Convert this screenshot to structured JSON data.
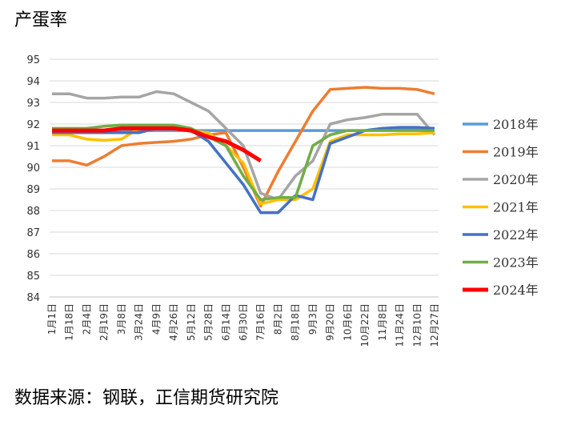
{
  "chart_data": {
    "type": "line",
    "title": "产蛋率",
    "source": "数据来源：钢联，正信期货研究院",
    "categories": [
      "1月1日",
      "1月18日",
      "2月4日",
      "2月19日",
      "3月8日",
      "3月24日",
      "4月9日",
      "4月26日",
      "5月12日",
      "5月28日",
      "6月14日",
      "6月30日",
      "7月16日",
      "8月2日",
      "8月18日",
      "9月3日",
      "9月20日",
      "10月6日",
      "10月22日",
      "11月8日",
      "11月24日",
      "12月10日",
      "12月27日"
    ],
    "ylim": [
      84,
      95
    ],
    "yticks": [
      84,
      85,
      86,
      87,
      88,
      89,
      90,
      91,
      92,
      93,
      94,
      95
    ],
    "grid": true,
    "legend": "right",
    "series": [
      {
        "name": "2018年",
        "color": "#5b9bd5",
        "values": [
          91.7,
          91.7,
          91.7,
          91.7,
          91.7,
          91.7,
          91.7,
          91.7,
          91.7,
          91.7,
          91.7,
          91.7,
          91.7,
          91.7,
          91.7,
          91.7,
          91.7,
          91.7,
          91.7,
          91.8,
          91.8,
          91.8,
          91.8
        ]
      },
      {
        "name": "2019年",
        "color": "#ed7d31",
        "values": [
          90.3,
          90.3,
          90.1,
          90.5,
          91.0,
          91.1,
          91.15,
          91.2,
          91.3,
          91.5,
          91.6,
          90.0,
          88.2,
          89.8,
          91.2,
          92.6,
          93.6,
          93.65,
          93.7,
          93.65,
          93.65,
          93.6,
          93.4
        ]
      },
      {
        "name": "2020年",
        "color": "#a5a5a5",
        "values": [
          93.4,
          93.4,
          93.2,
          93.2,
          93.25,
          93.25,
          93.5,
          93.4,
          93.0,
          92.6,
          91.8,
          91.0,
          88.8,
          88.5,
          89.6,
          90.3,
          92.0,
          92.2,
          92.3,
          92.45,
          92.45,
          92.45,
          91.5
        ]
      },
      {
        "name": "2021年",
        "color": "#ffc000",
        "values": [
          91.5,
          91.5,
          91.3,
          91.25,
          91.3,
          91.8,
          91.8,
          91.8,
          91.7,
          91.6,
          91.0,
          90.2,
          88.3,
          88.5,
          88.5,
          89.0,
          91.2,
          91.5,
          91.5,
          91.5,
          91.55,
          91.55,
          91.6
        ]
      },
      {
        "name": "2022年",
        "color": "#4472c4",
        "values": [
          91.6,
          91.6,
          91.6,
          91.6,
          91.6,
          91.6,
          91.8,
          91.8,
          91.7,
          91.2,
          90.2,
          89.2,
          87.9,
          87.9,
          88.7,
          88.5,
          91.1,
          91.4,
          91.7,
          91.8,
          91.85,
          91.85,
          91.8
        ]
      },
      {
        "name": "2023年",
        "color": "#70ad47",
        "values": [
          91.8,
          91.8,
          91.8,
          91.9,
          91.95,
          91.95,
          91.95,
          91.95,
          91.8,
          91.4,
          91.0,
          89.6,
          88.5,
          88.6,
          88.6,
          91.0,
          91.5,
          91.7,
          91.7,
          91.7,
          91.7,
          91.7,
          91.7
        ]
      },
      {
        "name": "2024年",
        "color": "#ff0000",
        "values": [
          91.7,
          91.7,
          91.7,
          91.7,
          91.8,
          91.8,
          91.8,
          91.8,
          91.7,
          91.4,
          91.2,
          90.8,
          90.3,
          null,
          null,
          null,
          null,
          null,
          null,
          null,
          null,
          null,
          null
        ]
      }
    ]
  }
}
